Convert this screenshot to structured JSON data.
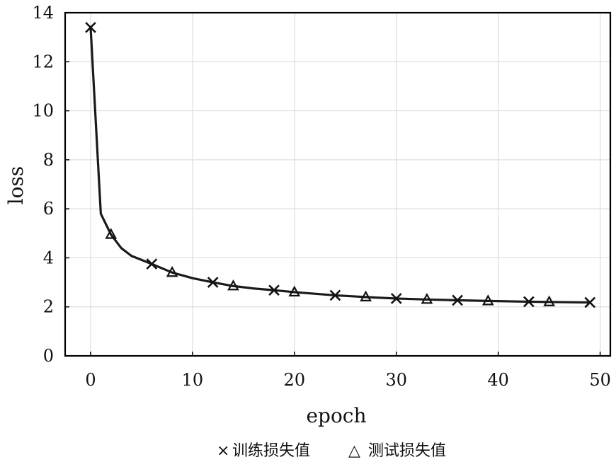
{
  "chart_data": {
    "type": "line",
    "xlabel": "epoch",
    "ylabel": "loss",
    "xlim": [
      -2.5,
      51
    ],
    "ylim": [
      0,
      14
    ],
    "xticks": [
      0,
      10,
      20,
      30,
      40,
      50
    ],
    "yticks": [
      0,
      2,
      4,
      6,
      8,
      10,
      12,
      14
    ],
    "grid": true,
    "legend_position": "bottom",
    "curve": {
      "x": [
        0,
        1,
        2,
        3,
        4,
        6,
        8,
        10,
        12,
        14,
        16,
        18,
        20,
        24,
        27,
        30,
        33,
        36,
        39,
        43,
        45,
        49
      ],
      "y": [
        13.4,
        5.8,
        4.95,
        4.4,
        4.08,
        3.75,
        3.4,
        3.17,
        3.0,
        2.85,
        2.75,
        2.68,
        2.6,
        2.47,
        2.4,
        2.34,
        2.3,
        2.27,
        2.24,
        2.21,
        2.2,
        2.18
      ]
    },
    "series": [
      {
        "name": "训练损失值",
        "marker": "x",
        "x": [
          0,
          6,
          12,
          18,
          24,
          30,
          36,
          43,
          49
        ],
        "y": [
          13.4,
          3.75,
          3.0,
          2.68,
          2.47,
          2.34,
          2.27,
          2.21,
          2.18
        ]
      },
      {
        "name": "测试损失值",
        "marker": "triangle",
        "x": [
          2,
          8,
          14,
          20,
          27,
          33,
          39,
          45
        ],
        "y": [
          4.95,
          3.4,
          2.85,
          2.6,
          2.4,
          2.3,
          2.24,
          2.2
        ]
      }
    ],
    "colors": {
      "line": "#1a1a1a",
      "grid": "#dddddd",
      "frame": "#000000"
    }
  },
  "legend": {
    "train_symbol": "×",
    "train_label": "训练损失值",
    "test_symbol": "△",
    "test_label": "测试损失值"
  }
}
